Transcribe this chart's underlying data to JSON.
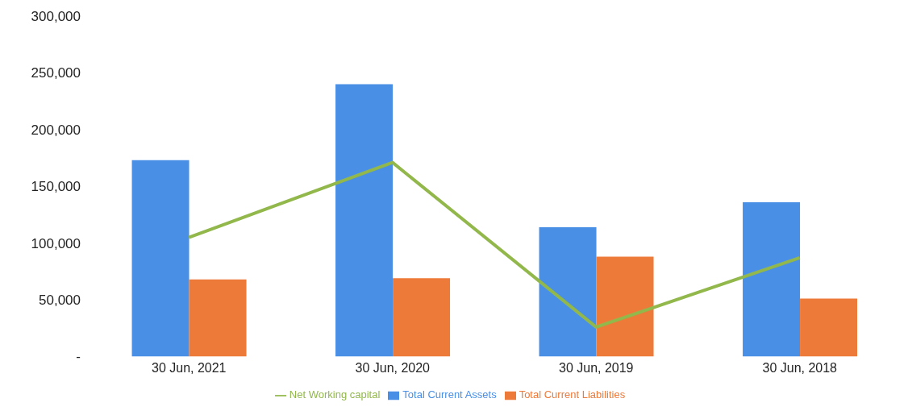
{
  "chart_data": {
    "type": "bar",
    "categories": [
      "30 Jun, 2021",
      "30 Jun, 2020",
      "30 Jun, 2019",
      "30 Jun, 2018"
    ],
    "series": [
      {
        "name": "Total Current Assets",
        "color": "#4a8fe6",
        "values": [
          173000,
          240000,
          114000,
          136000
        ]
      },
      {
        "name": "Total Current Liabilities",
        "color": "#ee7a3a",
        "values": [
          68000,
          69000,
          88000,
          51000
        ]
      },
      {
        "name": "Net Working capital",
        "type": "line",
        "color": "#92b84c",
        "values": [
          105000,
          171000,
          26000,
          87000
        ]
      }
    ],
    "ylim": [
      0,
      300000
    ],
    "yticks": [
      {
        "value": 0,
        "label": "-"
      },
      {
        "value": 50000,
        "label": "50,000"
      },
      {
        "value": 100000,
        "label": "100,000"
      },
      {
        "value": 150000,
        "label": "150,000"
      },
      {
        "value": 200000,
        "label": "200,000"
      },
      {
        "value": 250000,
        "label": "250,000"
      },
      {
        "value": 300000,
        "label": "300,000"
      }
    ],
    "grid": false,
    "legend": "bottom",
    "marker": "none"
  }
}
